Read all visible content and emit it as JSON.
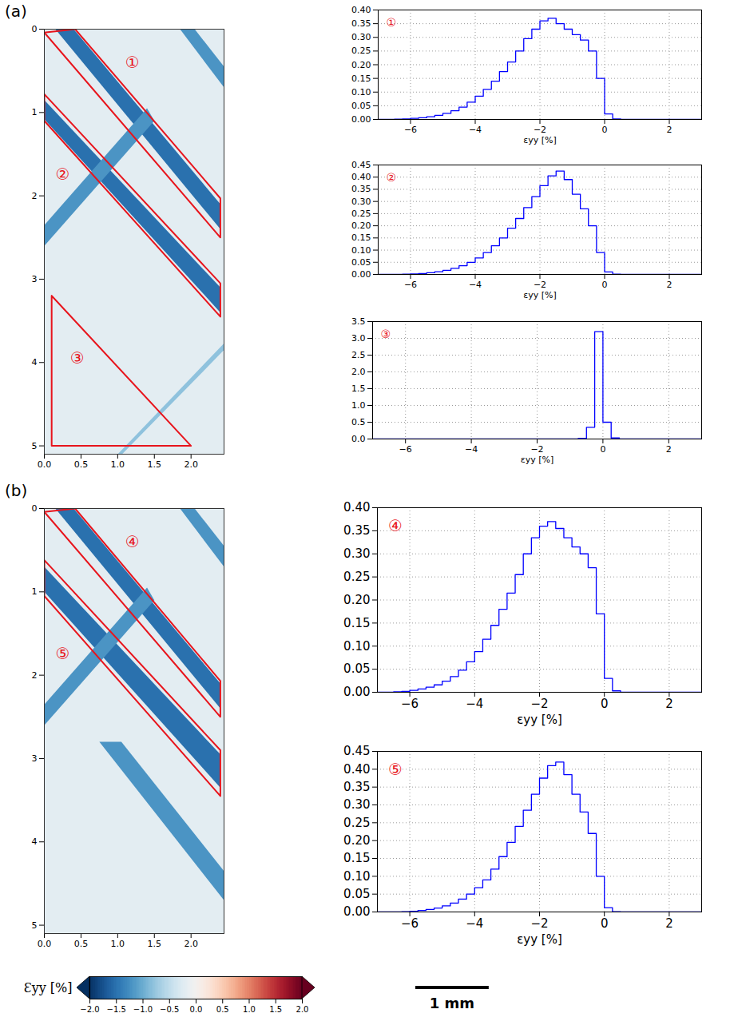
{
  "chart_data": [
    {
      "type": "strain_map",
      "title": "(a)",
      "xlim": [
        0,
        2.45
      ],
      "xticks": [
        {
          "value": 0,
          "label": "0.0"
        },
        0.5,
        {
          "value": 1,
          "label": "1.0"
        },
        1.5,
        {
          "value": 2,
          "label": "2.0"
        }
      ],
      "ylim": [
        0,
        5.1
      ],
      "yticks": [
        0,
        1,
        2,
        3,
        4,
        5
      ],
      "background_strain": -0.2,
      "bands": [
        {
          "strain": -1.5,
          "points": [
            [
              0.15,
              0
            ],
            [
              0.4,
              0
            ],
            [
              2.4,
              2.1
            ],
            [
              2.4,
              2.4
            ]
          ]
        },
        {
          "strain": -1.5,
          "points": [
            [
              0,
              0.85
            ],
            [
              0,
              1.08
            ],
            [
              2.4,
              3.4
            ],
            [
              2.4,
              3.1
            ]
          ]
        },
        {
          "strain": -1.2,
          "points": [
            [
              0,
              2.35
            ],
            [
              0,
              2.6
            ],
            [
              1.5,
              1.1
            ],
            [
              1.4,
              0.95
            ]
          ]
        },
        {
          "strain": -1.2,
          "points": [
            [
              1.85,
              0
            ],
            [
              2.05,
              0
            ],
            [
              2.45,
              0.45
            ],
            [
              2.45,
              0.7
            ]
          ]
        },
        {
          "strain": -0.8,
          "points": [
            [
              1.0,
              5.1
            ],
            [
              1.06,
              5.1
            ],
            [
              2.45,
              3.85
            ],
            [
              2.45,
              3.77
            ]
          ]
        }
      ],
      "regions": [
        {
          "label": "①",
          "points": [
            [
              0.42,
              0
            ],
            [
              2.4,
              2.03
            ],
            [
              2.4,
              2.5
            ],
            [
              0,
              0.04
            ]
          ],
          "label_at": [
            1.2,
            0.4
          ]
        },
        {
          "label": "②",
          "points": [
            [
              0,
              0.78
            ],
            [
              2.4,
              3.05
            ],
            [
              2.4,
              3.45
            ],
            [
              0,
              1.1
            ]
          ],
          "label_at": [
            0.25,
            1.75
          ]
        },
        {
          "label": "③",
          "points": [
            [
              0.1,
              3.2
            ],
            [
              0.1,
              5.0
            ],
            [
              2.0,
              5.0
            ]
          ],
          "label_at": [
            0.45,
            3.95
          ]
        }
      ]
    },
    {
      "type": "strain_map",
      "title": "(b)",
      "xlim": [
        0,
        2.45
      ],
      "xticks": [
        {
          "value": 0,
          "label": "0.0"
        },
        0.5,
        {
          "value": 1,
          "label": "1.0"
        },
        1.5,
        {
          "value": 2,
          "label": "2.0"
        }
      ],
      "ylim": [
        0,
        5.1
      ],
      "yticks": [
        0,
        1,
        2,
        3,
        4,
        5
      ],
      "background_strain": -0.2,
      "bands": [
        {
          "strain": -1.5,
          "points": [
            [
              0.15,
              0
            ],
            [
              0.4,
              0
            ],
            [
              2.4,
              2.1
            ],
            [
              2.4,
              2.4
            ]
          ]
        },
        {
          "strain": -1.5,
          "points": [
            [
              0,
              0.7
            ],
            [
              0,
              1.0
            ],
            [
              2.4,
              3.35
            ],
            [
              2.4,
              2.95
            ]
          ]
        },
        {
          "strain": -1.2,
          "points": [
            [
              0,
              2.35
            ],
            [
              0,
              2.6
            ],
            [
              1.5,
              1.1
            ],
            [
              1.4,
              0.95
            ]
          ]
        },
        {
          "strain": -1.2,
          "points": [
            [
              0.75,
              2.8
            ],
            [
              1.05,
              2.8
            ],
            [
              2.45,
              4.35
            ],
            [
              2.45,
              4.7
            ]
          ]
        },
        {
          "strain": -1.2,
          "points": [
            [
              1.85,
              0
            ],
            [
              2.05,
              0
            ],
            [
              2.45,
              0.45
            ],
            [
              2.45,
              0.7
            ]
          ]
        }
      ],
      "regions": [
        {
          "label": "④",
          "points": [
            [
              0.42,
              0
            ],
            [
              2.4,
              2.07
            ],
            [
              2.4,
              2.5
            ],
            [
              0,
              0.04
            ]
          ],
          "label_at": [
            1.2,
            0.4
          ]
        },
        {
          "label": "⑤",
          "points": [
            [
              0,
              0.62
            ],
            [
              2.4,
              2.9
            ],
            [
              2.4,
              3.45
            ],
            [
              0,
              1.05
            ]
          ],
          "label_at": [
            0.25,
            1.75
          ]
        }
      ]
    },
    {
      "type": "histogram",
      "title": "①",
      "xlabel": "εyy [%]",
      "color": "#0000ff",
      "grid": true,
      "bins": [
        -7,
        -6.75,
        -6.5,
        -6.25,
        -6,
        -5.75,
        -5.5,
        -5.25,
        -5,
        -4.75,
        -4.5,
        -4.25,
        -4,
        -3.75,
        -3.5,
        -3.25,
        -3,
        -2.75,
        -2.5,
        -2.25,
        -2,
        -1.75,
        -1.5,
        -1.25,
        -1,
        -0.75,
        -0.5,
        -0.25,
        0,
        0.25,
        0.5,
        0.75,
        1,
        1.25,
        1.5,
        1.75,
        2,
        2.25,
        2.5,
        2.75,
        3
      ],
      "values": [
        0,
        0,
        0.001,
        0.002,
        0.004,
        0.006,
        0.01,
        0.015,
        0.022,
        0.032,
        0.045,
        0.063,
        0.085,
        0.11,
        0.14,
        0.175,
        0.21,
        0.25,
        0.295,
        0.33,
        0.36,
        0.37,
        0.35,
        0.33,
        0.31,
        0.29,
        0.25,
        0.15,
        0.02,
        0.002,
        0,
        0,
        0,
        0,
        0,
        0,
        0,
        0,
        0,
        0
      ],
      "xlim": [
        -7,
        3
      ],
      "xticks": [
        {
          "value": -6,
          "label": "−6"
        },
        {
          "value": -4,
          "label": "−4"
        },
        {
          "value": -2,
          "label": "−2"
        },
        0,
        2
      ],
      "ylim": [
        0,
        0.4
      ],
      "yticks": [
        {
          "value": 0,
          "label": "0.00"
        },
        0.05,
        {
          "value": 0.1,
          "label": "0.10"
        },
        0.15,
        {
          "value": 0.2,
          "label": "0.20"
        },
        0.25,
        {
          "value": 0.3,
          "label": "0.30"
        },
        0.35,
        {
          "value": 0.4,
          "label": "0.40"
        }
      ]
    },
    {
      "type": "histogram",
      "title": "②",
      "xlabel": "εyy [%]",
      "color": "#0000ff",
      "grid": true,
      "bins": [
        -7,
        -6.75,
        -6.5,
        -6.25,
        -6,
        -5.75,
        -5.5,
        -5.25,
        -5,
        -4.75,
        -4.5,
        -4.25,
        -4,
        -3.75,
        -3.5,
        -3.25,
        -3,
        -2.75,
        -2.5,
        -2.25,
        -2,
        -1.75,
        -1.5,
        -1.25,
        -1,
        -0.75,
        -0.5,
        -0.25,
        0,
        0.25,
        0.5,
        0.75,
        1,
        1.25,
        1.5,
        1.75,
        2,
        2.25,
        2.5,
        2.75,
        3
      ],
      "values": [
        0,
        0,
        0,
        0.001,
        0.002,
        0.004,
        0.007,
        0.011,
        0.017,
        0.025,
        0.036,
        0.05,
        0.068,
        0.09,
        0.118,
        0.15,
        0.19,
        0.23,
        0.275,
        0.32,
        0.365,
        0.405,
        0.425,
        0.39,
        0.33,
        0.27,
        0.2,
        0.09,
        0.01,
        0.001,
        0,
        0,
        0,
        0,
        0,
        0,
        0,
        0,
        0,
        0
      ],
      "xlim": [
        -7,
        3
      ],
      "xticks": [
        {
          "value": -6,
          "label": "−6"
        },
        {
          "value": -4,
          "label": "−4"
        },
        {
          "value": -2,
          "label": "−2"
        },
        0,
        2
      ],
      "ylim": [
        0,
        0.45
      ],
      "yticks": [
        {
          "value": 0,
          "label": "0.00"
        },
        0.05,
        {
          "value": 0.1,
          "label": "0.10"
        },
        0.15,
        {
          "value": 0.2,
          "label": "0.20"
        },
        0.25,
        {
          "value": 0.3,
          "label": "0.30"
        },
        0.35,
        {
          "value": 0.4,
          "label": "0.40"
        },
        0.45
      ]
    },
    {
      "type": "histogram",
      "title": "③",
      "xlabel": "εyy [%]",
      "color": "#0000ff",
      "grid": true,
      "bins": [
        -7,
        -6.75,
        -6.5,
        -6.25,
        -6,
        -5.75,
        -5.5,
        -5.25,
        -5,
        -4.75,
        -4.5,
        -4.25,
        -4,
        -3.75,
        -3.5,
        -3.25,
        -3,
        -2.75,
        -2.5,
        -2.25,
        -2,
        -1.75,
        -1.5,
        -1.25,
        -1,
        -0.75,
        -0.5,
        -0.25,
        0,
        0.25,
        0.5,
        0.75,
        1,
        1.25,
        1.5,
        1.75,
        2,
        2.25,
        2.5,
        2.75,
        3
      ],
      "values": [
        0,
        0,
        0,
        0,
        0,
        0,
        0,
        0,
        0,
        0,
        0,
        0,
        0,
        0,
        0,
        0,
        0,
        0,
        0,
        0,
        0,
        0,
        0,
        0,
        0.005,
        0.02,
        0.35,
        3.2,
        0.5,
        0.03,
        0.005,
        0,
        0,
        0,
        0,
        0,
        0,
        0,
        0,
        0
      ],
      "xlim": [
        -7,
        3
      ],
      "xticks": [
        {
          "value": -6,
          "label": "−6"
        },
        {
          "value": -4,
          "label": "−4"
        },
        {
          "value": -2,
          "label": "−2"
        },
        0,
        2
      ],
      "ylim": [
        0,
        3.5
      ],
      "yticks": [
        {
          "value": 0,
          "label": "0.0"
        },
        0.5,
        {
          "value": 1,
          "label": "1.0"
        },
        1.5,
        {
          "value": 2,
          "label": "2.0"
        },
        2.5,
        {
          "value": 3,
          "label": "3.0"
        },
        3.5
      ]
    },
    {
      "type": "histogram",
      "title": "④",
      "xlabel": "εyy [%]",
      "color": "#0000ff",
      "grid": true,
      "bins": [
        -7,
        -6.75,
        -6.5,
        -6.25,
        -6,
        -5.75,
        -5.5,
        -5.25,
        -5,
        -4.75,
        -4.5,
        -4.25,
        -4,
        -3.75,
        -3.5,
        -3.25,
        -3,
        -2.75,
        -2.5,
        -2.25,
        -2,
        -1.75,
        -1.5,
        -1.25,
        -1,
        -0.75,
        -0.5,
        -0.25,
        0,
        0.25,
        0.5,
        0.75,
        1,
        1.25,
        1.5,
        1.75,
        2,
        2.25,
        2.5,
        2.75,
        3
      ],
      "values": [
        0,
        0,
        0.001,
        0.002,
        0.004,
        0.007,
        0.011,
        0.016,
        0.024,
        0.034,
        0.048,
        0.066,
        0.088,
        0.115,
        0.145,
        0.18,
        0.215,
        0.255,
        0.3,
        0.335,
        0.36,
        0.37,
        0.355,
        0.335,
        0.315,
        0.3,
        0.27,
        0.17,
        0.03,
        0.003,
        0,
        0,
        0,
        0,
        0,
        0,
        0,
        0,
        0,
        0
      ],
      "xlim": [
        -7,
        3
      ],
      "xticks": [
        {
          "value": -6,
          "label": "−6"
        },
        {
          "value": -4,
          "label": "−4"
        },
        {
          "value": -2,
          "label": "−2"
        },
        0,
        2
      ],
      "ylim": [
        0,
        0.4
      ],
      "yticks": [
        {
          "value": 0,
          "label": "0.00"
        },
        0.05,
        {
          "value": 0.1,
          "label": "0.10"
        },
        0.15,
        {
          "value": 0.2,
          "label": "0.20"
        },
        0.25,
        {
          "value": 0.3,
          "label": "0.30"
        },
        0.35,
        {
          "value": 0.4,
          "label": "0.40"
        }
      ]
    },
    {
      "type": "histogram",
      "title": "⑤",
      "xlabel": "εyy [%]",
      "color": "#0000ff",
      "grid": true,
      "bins": [
        -7,
        -6.75,
        -6.5,
        -6.25,
        -6,
        -5.75,
        -5.5,
        -5.25,
        -5,
        -4.75,
        -4.5,
        -4.25,
        -4,
        -3.75,
        -3.5,
        -3.25,
        -3,
        -2.75,
        -2.5,
        -2.25,
        -2,
        -1.75,
        -1.5,
        -1.25,
        -1,
        -0.75,
        -0.5,
        -0.25,
        0,
        0.25,
        0.5,
        0.75,
        1,
        1.25,
        1.5,
        1.75,
        2,
        2.25,
        2.5,
        2.75,
        3
      ],
      "values": [
        0,
        0,
        0,
        0.001,
        0.002,
        0.004,
        0.007,
        0.011,
        0.017,
        0.025,
        0.036,
        0.05,
        0.068,
        0.09,
        0.12,
        0.155,
        0.195,
        0.24,
        0.285,
        0.33,
        0.375,
        0.41,
        0.42,
        0.385,
        0.33,
        0.28,
        0.22,
        0.1,
        0.012,
        0.001,
        0,
        0,
        0,
        0,
        0,
        0,
        0,
        0,
        0,
        0
      ],
      "xlim": [
        -7,
        3
      ],
      "xticks": [
        {
          "value": -6,
          "label": "−6"
        },
        {
          "value": -4,
          "label": "−4"
        },
        {
          "value": -2,
          "label": "−2"
        },
        0,
        2
      ],
      "ylim": [
        0,
        0.45
      ],
      "yticks": [
        {
          "value": 0,
          "label": "0.00"
        },
        0.05,
        {
          "value": 0.1,
          "label": "0.10"
        },
        0.15,
        {
          "value": 0.2,
          "label": "0.20"
        },
        0.25,
        {
          "value": 0.3,
          "label": "0.30"
        },
        0.35,
        {
          "value": 0.4,
          "label": "0.40"
        },
        0.45
      ]
    },
    {
      "type": "colorbar",
      "label": "Ɛyy [%]",
      "range": [
        -2,
        2
      ],
      "ticks": [
        {
          "value": -2,
          "label": "−2.0"
        },
        {
          "value": -1.5,
          "label": "−1.5"
        },
        {
          "value": -1,
          "label": "−1.0"
        },
        {
          "value": -0.5,
          "label": "−0.5"
        },
        {
          "value": 0,
          "label": "0.0"
        },
        0.5,
        {
          "value": 1,
          "label": "1.0"
        },
        1.5,
        {
          "value": 2,
          "label": "2.0"
        }
      ]
    },
    {
      "type": "scale_bar",
      "length": 1,
      "label": "1 mm"
    }
  ]
}
